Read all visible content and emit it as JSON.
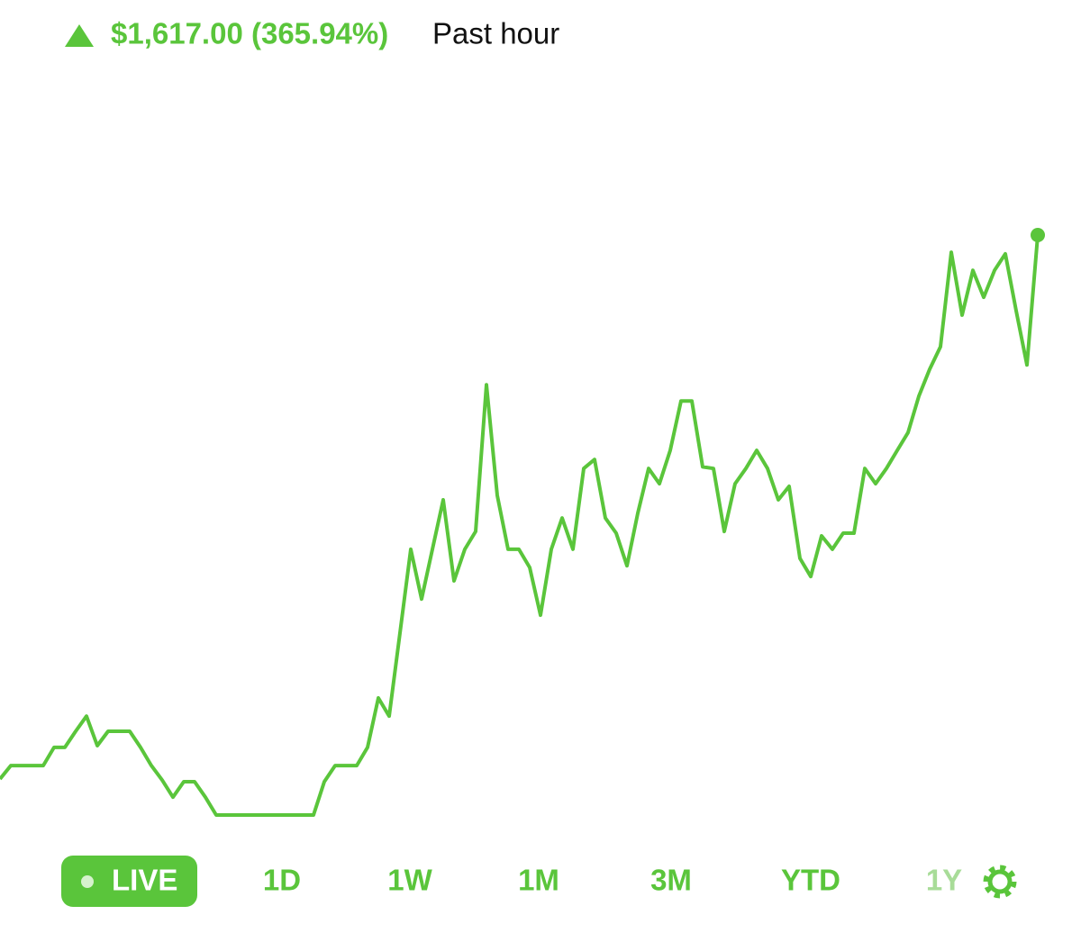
{
  "header": {
    "change": "$1,617.00 (365.94%)",
    "period": "Past hour"
  },
  "tabs": [
    "LIVE",
    "1D",
    "1W",
    "1M",
    "3M",
    "YTD",
    "1Y"
  ],
  "chart_data": {
    "type": "line",
    "color": "#5ac53b",
    "values": [
      442,
      482,
      482,
      482,
      482,
      536,
      536,
      584,
      629,
      541,
      584,
      584,
      584,
      536,
      482,
      439,
      388,
      434,
      434,
      388,
      335,
      335,
      335,
      335,
      335,
      335,
      335,
      335,
      335,
      335,
      434,
      482,
      482,
      482,
      536,
      683,
      629,
      876,
      1125,
      977,
      1125,
      1272,
      1031,
      1125,
      1178,
      1614,
      1285,
      1125,
      1125,
      1071,
      929,
      1125,
      1218,
      1125,
      1365,
      1392,
      1218,
      1173,
      1076,
      1232,
      1365,
      1320,
      1419,
      1566,
      1566,
      1370,
      1365,
      1178,
      1320,
      1365,
      1419,
      1365,
      1272,
      1312,
      1098,
      1044,
      1165,
      1125,
      1173,
      1173,
      1365,
      1320,
      1365,
      1419,
      1472,
      1580,
      1660,
      1727,
      2008,
      1821,
      1954,
      1874,
      1954,
      2003,
      1834,
      1673,
      2059
    ]
  }
}
